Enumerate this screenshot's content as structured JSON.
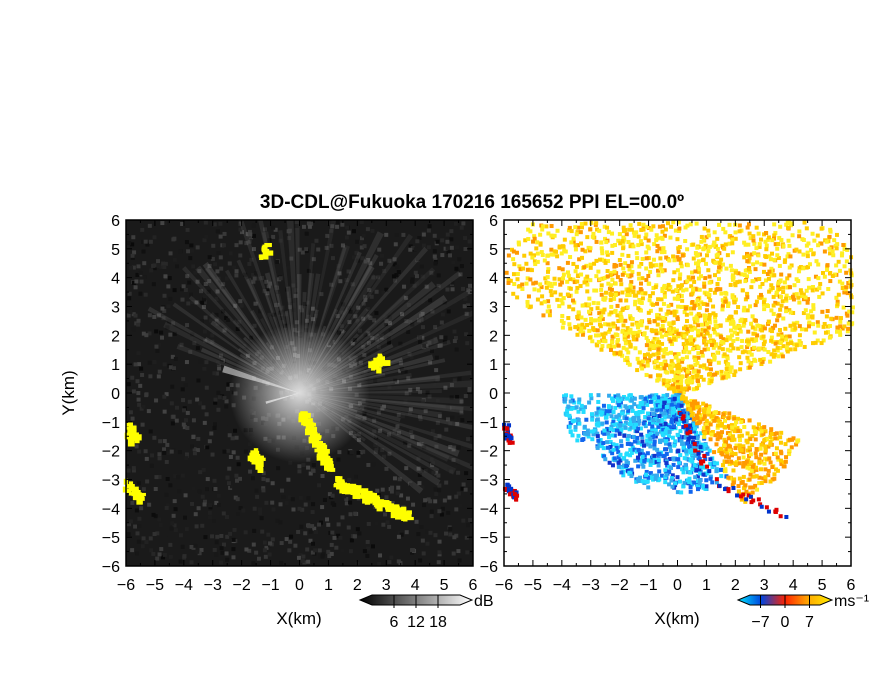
{
  "title": "3D-CDL@Fukuoka 170216 165652 PPI EL=00.0º",
  "colors": {
    "background_left": "#1a1a1a",
    "clutter": "#ffff00",
    "approach_strong": "#0033cc",
    "approach_weak": "#33ccff",
    "recede_weak": "#ffdd00",
    "recede_mid": "#ff8800",
    "recede_strong": "#dd0000"
  },
  "chart_data": [
    {
      "type": "heatmap",
      "panel": "left",
      "quantity": "echo intensity (PPI)",
      "xlabel": "X(km)",
      "ylabel": "Y(km)",
      "xlim": [
        -6,
        6
      ],
      "ylim": [
        -6,
        6
      ],
      "xticks": [
        "−6",
        "−5",
        "−4",
        "−3",
        "−2",
        "−1",
        "0",
        "1",
        "2",
        "3",
        "4",
        "5",
        "6"
      ],
      "yticks": [
        "6",
        "5",
        "4",
        "3",
        "2",
        "1",
        "0",
        "−1",
        "−2",
        "−3",
        "−4",
        "−5",
        "−6"
      ],
      "colorbar": {
        "unit": "dB",
        "ticks": [
          "6",
          "12",
          "18"
        ],
        "range": [
          0,
          24
        ],
        "colors": [
          "#000000",
          "#ffffff"
        ]
      },
      "clutter_regions": [
        {
          "x": [
            0.0,
            1.0
          ],
          "y": [
            -0.6,
            -2.6
          ]
        },
        {
          "x": [
            1.2,
            3.7
          ],
          "y": [
            -3.0,
            -4.2
          ]
        },
        {
          "x": [
            -6.0,
            -5.8
          ],
          "y": [
            -1.1,
            -1.6
          ]
        },
        {
          "x": [
            -6.0,
            -5.6
          ],
          "y": [
            -3.1,
            -3.6
          ]
        },
        {
          "x": [
            -1.7,
            -1.4
          ],
          "y": [
            -2.0,
            -2.5
          ]
        },
        {
          "x": [
            2.5,
            2.8
          ],
          "y": [
            1.0,
            1.3
          ]
        },
        {
          "x": [
            -1.3,
            -1.2
          ],
          "y": [
            4.9,
            5.1
          ]
        }
      ]
    },
    {
      "type": "heatmap",
      "panel": "right",
      "quantity": "radial velocity (PPI)",
      "xlabel": "X(km)",
      "ylabel": "",
      "xlim": [
        -6,
        6
      ],
      "ylim": [
        -6,
        6
      ],
      "xticks": [
        "−6",
        "−5",
        "−4",
        "−3",
        "−2",
        "−1",
        "0",
        "1",
        "2",
        "3",
        "4",
        "5",
        "6"
      ],
      "colorbar": {
        "unit": "ms⁻¹",
        "ticks": [
          "−7",
          "0",
          "7"
        ],
        "range": [
          -10,
          10
        ],
        "colors": [
          "#00e5ff",
          "#0044dd",
          "#ff2200",
          "#ffaa00",
          "#ffee00"
        ]
      },
      "regions": [
        {
          "sector_deg": [
            20,
            150
          ],
          "range_km": [
            0,
            7.8
          ],
          "velocity_ms": [
            3,
            9
          ]
        },
        {
          "sector_deg": [
            180,
            205
          ],
          "range_km": [
            0,
            4.0
          ],
          "velocity_ms": [
            -9,
            -3
          ]
        },
        {
          "sector_deg": [
            205,
            300
          ],
          "range_km": [
            0,
            3.4
          ],
          "velocity_ms": [
            -9,
            -1
          ]
        },
        {
          "sector_deg": [
            300,
            340
          ],
          "range_km": [
            0,
            4.4
          ],
          "velocity_ms": [
            2,
            7
          ]
        }
      ]
    }
  ]
}
